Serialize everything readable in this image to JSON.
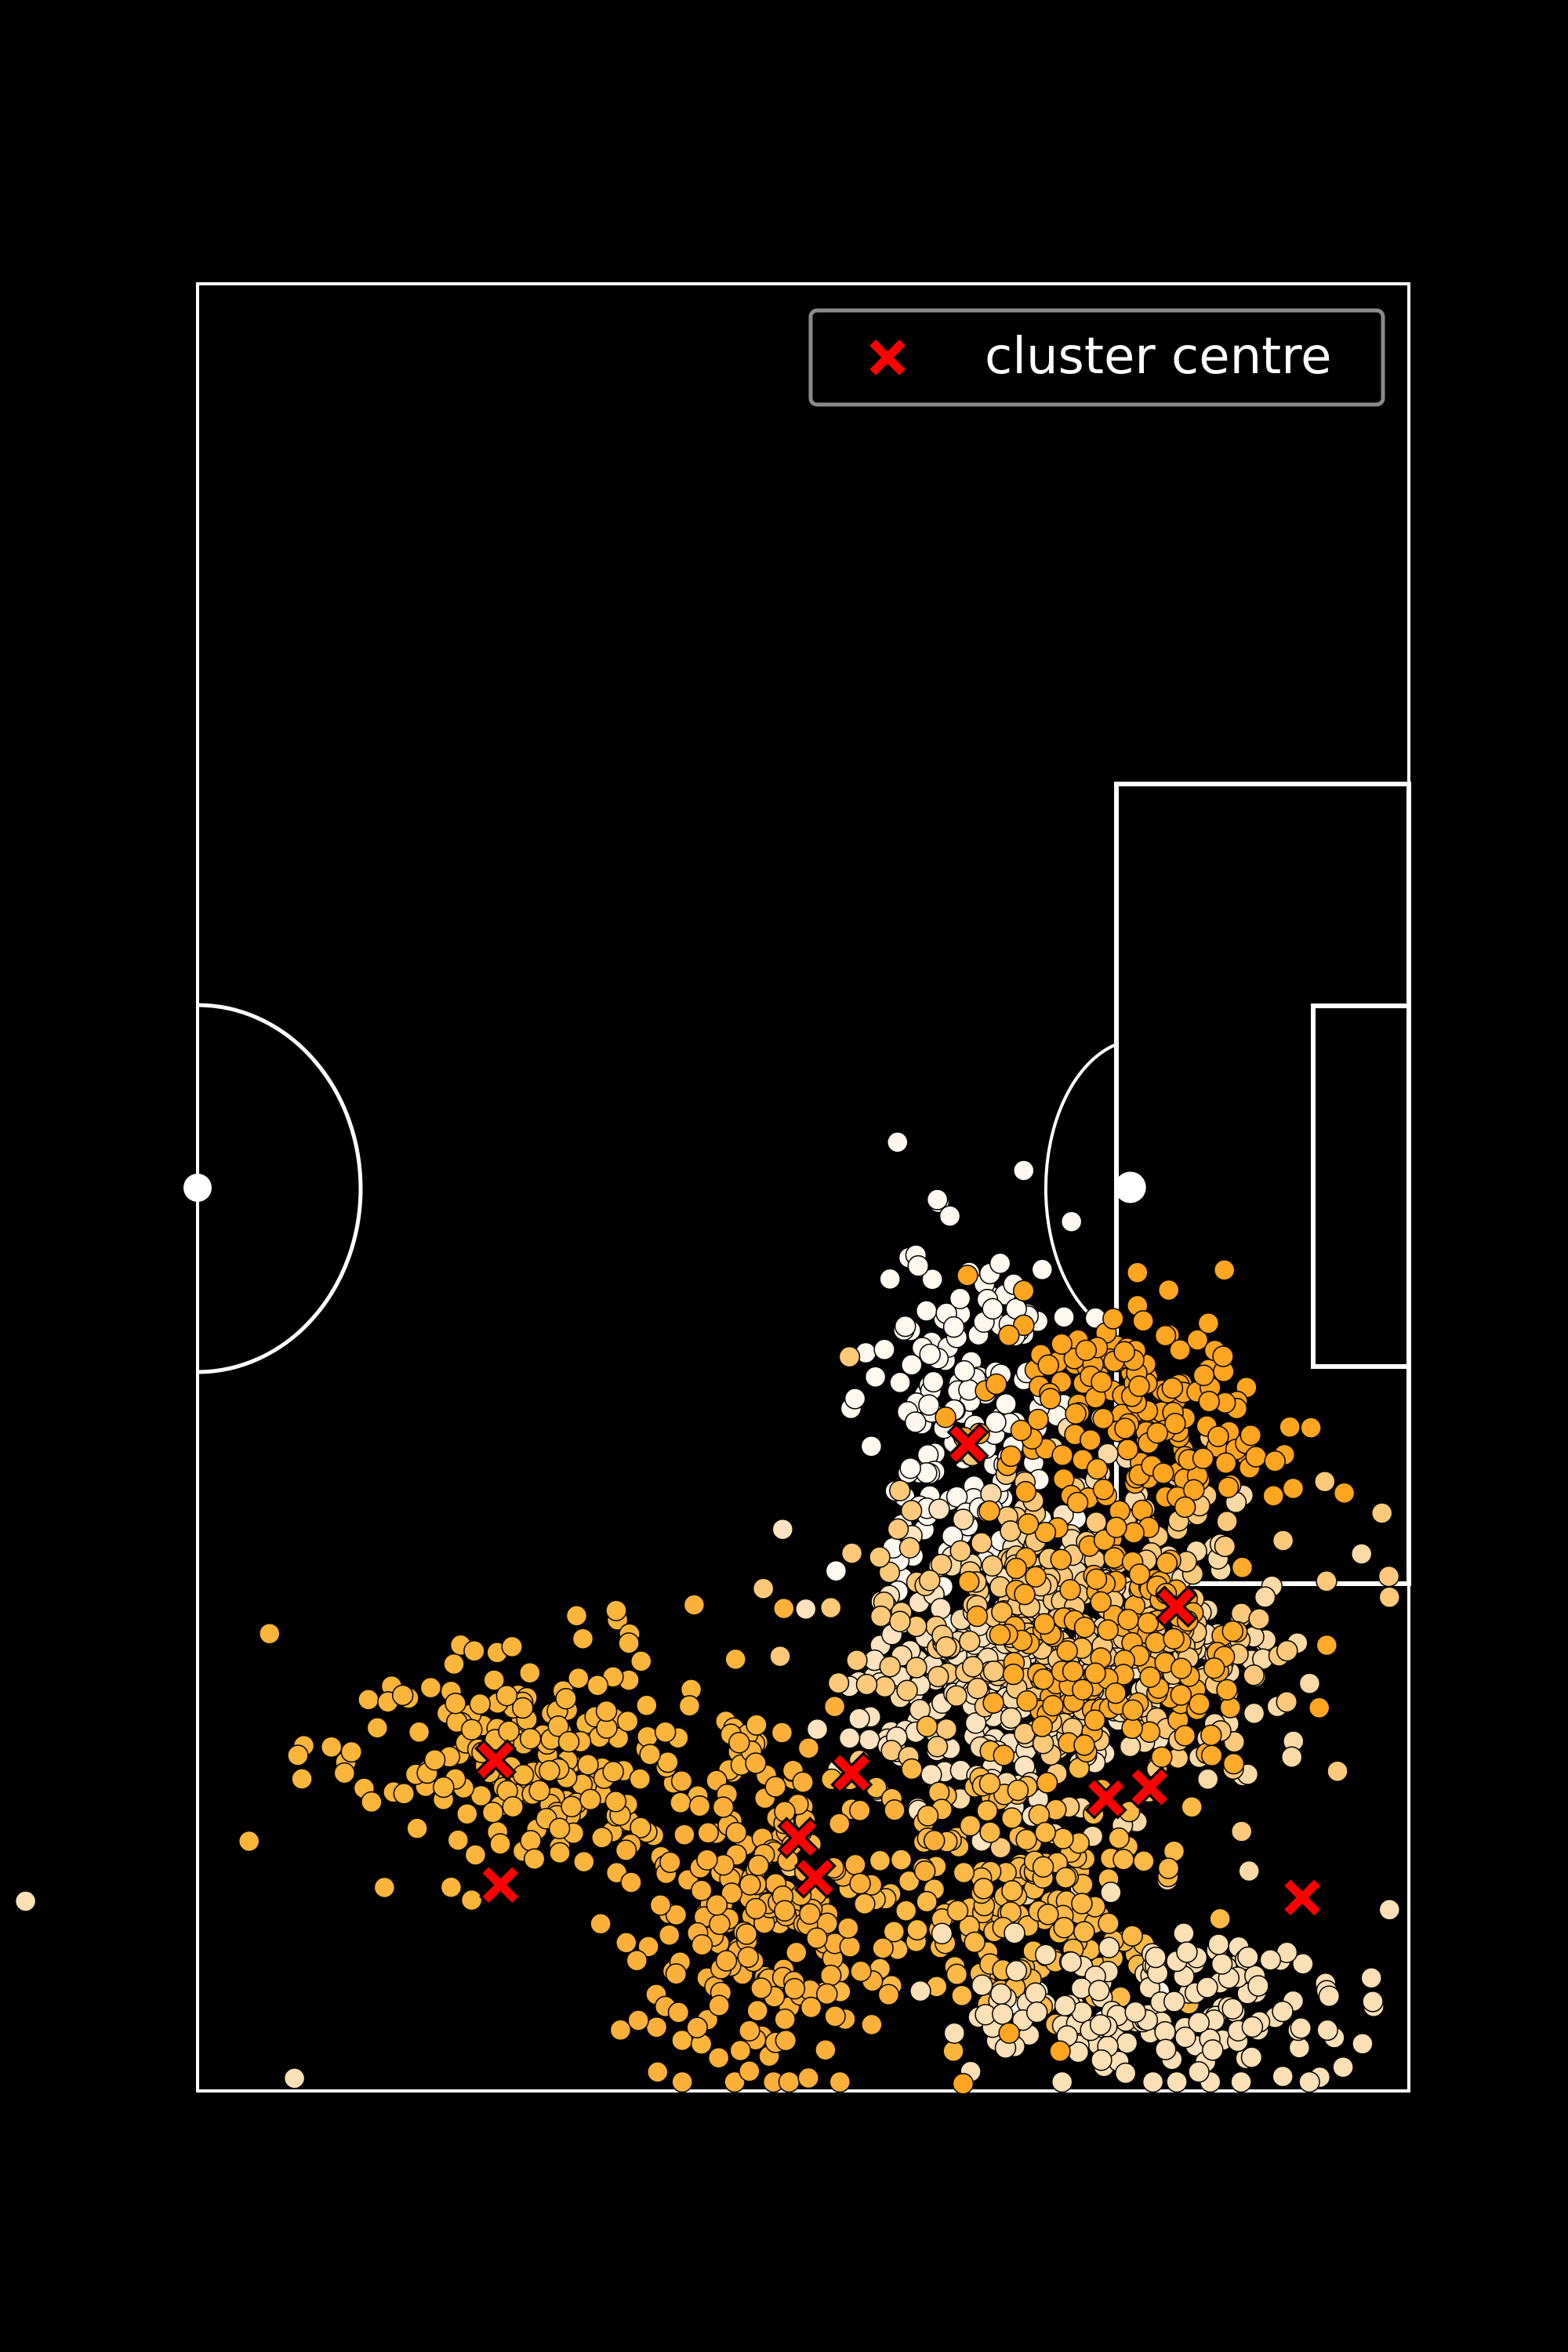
{
  "chart_data": {
    "type": "scatter",
    "title": "",
    "xlabel": "",
    "ylabel": "",
    "xlim": [
      50,
      100
    ],
    "ylim": [
      0,
      100
    ],
    "grid": false,
    "legend_position": "top-right",
    "legend": [
      {
        "label": "cluster centre",
        "color": "#ff0000",
        "marker": "x"
      }
    ],
    "pitch": {
      "background": "#000000",
      "line_color": "#ffffff",
      "orientation": "vertical-half",
      "penalty_spot": [
        50,
        88.5
      ],
      "kickoff_spot": [
        50,
        50
      ]
    },
    "cluster_centres": [
      {
        "x": 81.7,
        "y": 62.3
      },
      {
        "x": 82.4,
        "y": 77.0
      },
      {
        "x": 83.2,
        "y": 89.3
      },
      {
        "x": 88.6,
        "y": 62.5
      },
      {
        "x": 88.2,
        "y": 75.5
      },
      {
        "x": 83.8,
        "y": 87.5
      },
      {
        "x": 89.3,
        "y": 95.6
      },
      {
        "x": 73.2,
        "y": 90.4
      },
      {
        "x": 64.2,
        "y": 81.8
      },
      {
        "x": 86.0,
        "y": 74.8
      }
    ],
    "series": [
      {
        "name": "",
        "color": "#fff8ef",
        "center": [
          81.7,
          62.3
        ],
        "spread": [
          2.0,
          5.2
        ],
        "count": 170,
        "seed": 11,
        "outliers": [
          [
            83.6,
            95.2
          ],
          [
            84.7,
            94.5
          ],
          [
            87.4,
            96.1
          ],
          [
            88.8,
            95.9
          ],
          [
            89.7,
            94.5
          ]
        ]
      },
      {
        "name": "",
        "color": "#fde3bf",
        "center": [
          82.4,
          77.0
        ],
        "spread": [
          3.2,
          3.6
        ],
        "count": 200,
        "seed": 23,
        "outliers": [
          [
            83.2,
            94.5
          ],
          [
            85.0,
            95.2
          ],
          [
            91.2,
            97.5
          ],
          [
            92.3,
            95.4
          ]
        ]
      },
      {
        "name": "",
        "color": "#f9d9a6",
        "center": [
          88.2,
          75.5
        ],
        "spread": [
          3.4,
          4.4
        ],
        "count": 220,
        "seed": 37,
        "outliers": []
      },
      {
        "name": "",
        "color": "#fcc97a",
        "center": [
          86.0,
          74.8
        ],
        "spread": [
          4.5,
          4.6
        ],
        "count": 240,
        "seed": 41,
        "outliers": []
      },
      {
        "name": "",
        "color": "#fcb945",
        "center": [
          83.2,
          89.3
        ],
        "spread": [
          3.4,
          3.3
        ],
        "count": 200,
        "seed": 53,
        "outliers": [
          [
            83.2,
            73.5
          ],
          [
            84.5,
            74.9
          ],
          [
            86.5,
            75.5
          ],
          [
            87.0,
            77.0
          ]
        ]
      },
      {
        "name": "",
        "color": "#fab53a",
        "center": [
          64.2,
          81.8
        ],
        "spread": [
          4.5,
          3.0
        ],
        "count": 220,
        "seed": 67,
        "outliers": [
          [
            70.0,
            97.2
          ],
          [
            70.8,
            97.4
          ],
          [
            81.2,
            97.8
          ],
          [
            84.8,
            77.2
          ]
        ]
      },
      {
        "name": "",
        "color": "#fcb03a",
        "center": [
          73.2,
          90.4
        ],
        "spread": [
          2.6,
          4.3
        ],
        "count": 200,
        "seed": 79,
        "outliers": [
          [
            70.5,
            73.1
          ],
          [
            74.2,
            73.3
          ],
          [
            71.7,
            84.3
          ]
        ]
      },
      {
        "name": "",
        "color": "#fbdfb5",
        "center": [
          89.3,
          95.6
        ],
        "spread": [
          4.5,
          2.3
        ],
        "count": 160,
        "seed": 83,
        "outliers": [
          [
            21.0,
            93.3
          ],
          [
            35.4,
            92.6
          ],
          [
            38.7,
            89.9
          ],
          [
            42.9,
            89.5
          ],
          [
            54.0,
            99.3
          ]
        ]
      },
      {
        "name": "",
        "color": "#ffa51f",
        "center": [
          88.6,
          62.5
        ],
        "spread": [
          3.0,
          3.4
        ],
        "count": 180,
        "seed": 97,
        "outliers": [
          [
            83.5,
            96.8
          ],
          [
            85.6,
            97.8
          ],
          [
            81.6,
            99.6
          ],
          [
            85.2,
            78.2
          ],
          [
            96.3,
            78.8
          ]
        ]
      },
      {
        "name": "",
        "color": "#ffaa28",
        "center": [
          88.2,
          75.5
        ],
        "spread": [
          2.6,
          3.4
        ],
        "count": 150,
        "seed": 101,
        "outliers": []
      }
    ]
  }
}
